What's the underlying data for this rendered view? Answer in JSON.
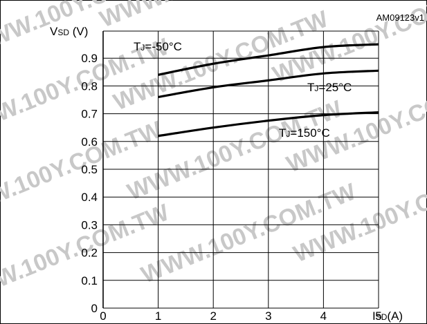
{
  "figure_id": "AM09123v1",
  "watermark_text": "WWW.100Y.COM.TW",
  "chart_data": {
    "type": "line",
    "x_axis": {
      "label_main": "I",
      "label_sub": "SD",
      "label_unit": "(A)",
      "range": [
        0,
        5
      ],
      "ticks": [
        "0",
        "1",
        "2",
        "3",
        "4",
        "5"
      ]
    },
    "y_axis": {
      "label_main": "V",
      "label_sub": "SD",
      "label_unit": " (V)",
      "range": [
        0,
        0.95
      ],
      "ticks": [
        "0",
        "0.1",
        "0.2",
        "0.3",
        "0.4",
        "0.5",
        "0.6",
        "0.7",
        "0.8",
        "0.9"
      ]
    },
    "grid": true,
    "series": [
      {
        "name": "TJ=-50°C",
        "label_main": "T",
        "label_sub": "J",
        "label_value": "=-50°C",
        "line_color": "#000000",
        "x": [
          1,
          2,
          3,
          4,
          5
        ],
        "y": [
          0.84,
          0.88,
          0.91,
          0.94,
          0.95
        ]
      },
      {
        "name": "TJ=25°C",
        "label_main": "T",
        "label_sub": "J",
        "label_value": "=25°C",
        "line_color": "#000000",
        "x": [
          1,
          2,
          3,
          4,
          5
        ],
        "y": [
          0.76,
          0.795,
          0.82,
          0.845,
          0.855
        ]
      },
      {
        "name": "TJ=150°C",
        "label_main": "T",
        "label_sub": "J",
        "label_value": "=150°C",
        "line_color": "#000000",
        "x": [
          1,
          2,
          3,
          4,
          5
        ],
        "y": [
          0.62,
          0.65,
          0.675,
          0.695,
          0.705
        ]
      }
    ]
  }
}
